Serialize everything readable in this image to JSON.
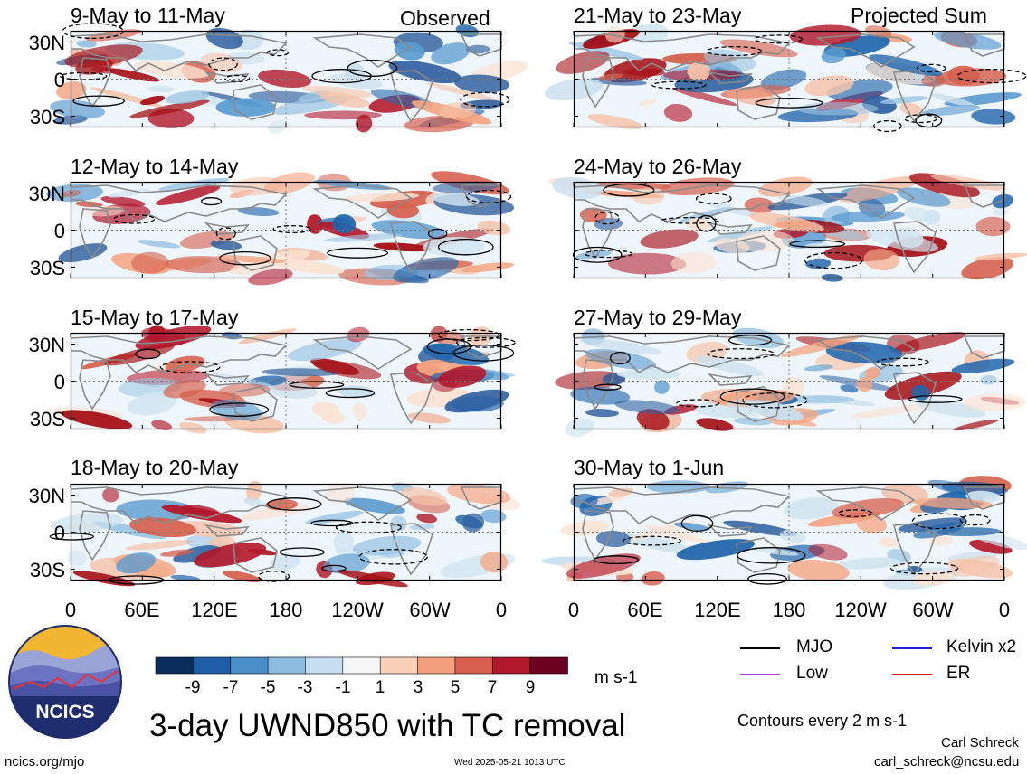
{
  "header": {
    "left_column_label": "Observed",
    "right_column_label": "Projected Sum"
  },
  "panels": {
    "left": [
      "9-May to 11-May",
      "12-May to 14-May",
      "15-May to 17-May",
      "18-May to 20-May"
    ],
    "right": [
      "21-May to 23-May",
      "24-May to 26-May",
      "27-May to 29-May",
      "30-May to 1-Jun"
    ]
  },
  "axes": {
    "lat_labels": [
      "30N",
      "0",
      "30S"
    ],
    "lon_labels": [
      "0",
      "60E",
      "120E",
      "180",
      "120W",
      "60W",
      "0"
    ]
  },
  "colorbar": {
    "ticks": [
      "-9",
      "-7",
      "-5",
      "-3",
      "-1",
      "1",
      "3",
      "5",
      "7",
      "9"
    ],
    "colors": [
      "#0b2d5a",
      "#1f5fa8",
      "#4a8fc7",
      "#8cbde0",
      "#c5dff0",
      "#f7f7f7",
      "#fbd0b8",
      "#f2a07c",
      "#d9604f",
      "#b2182b",
      "#6b0020"
    ],
    "units": "m s-1"
  },
  "legend": {
    "items": [
      {
        "label": "MJO",
        "color": "#000000"
      },
      {
        "label": "Kelvin x2",
        "color": "#1f1fd6"
      },
      {
        "label": "Low",
        "color": "#a63cd6"
      },
      {
        "label": "ER",
        "color": "#d62020"
      }
    ],
    "contours_note": "Contours every 2 m s-1"
  },
  "logo": {
    "text": "NCICS"
  },
  "main_title": "3-day UWND850 with TC removal",
  "footer": {
    "url": "ncics.org/mjo",
    "timestamp": "Wed 2025-05-21 1013 UTC",
    "author": "Carl Schreck",
    "email": "carl_schreck@ncsu.edu"
  }
}
